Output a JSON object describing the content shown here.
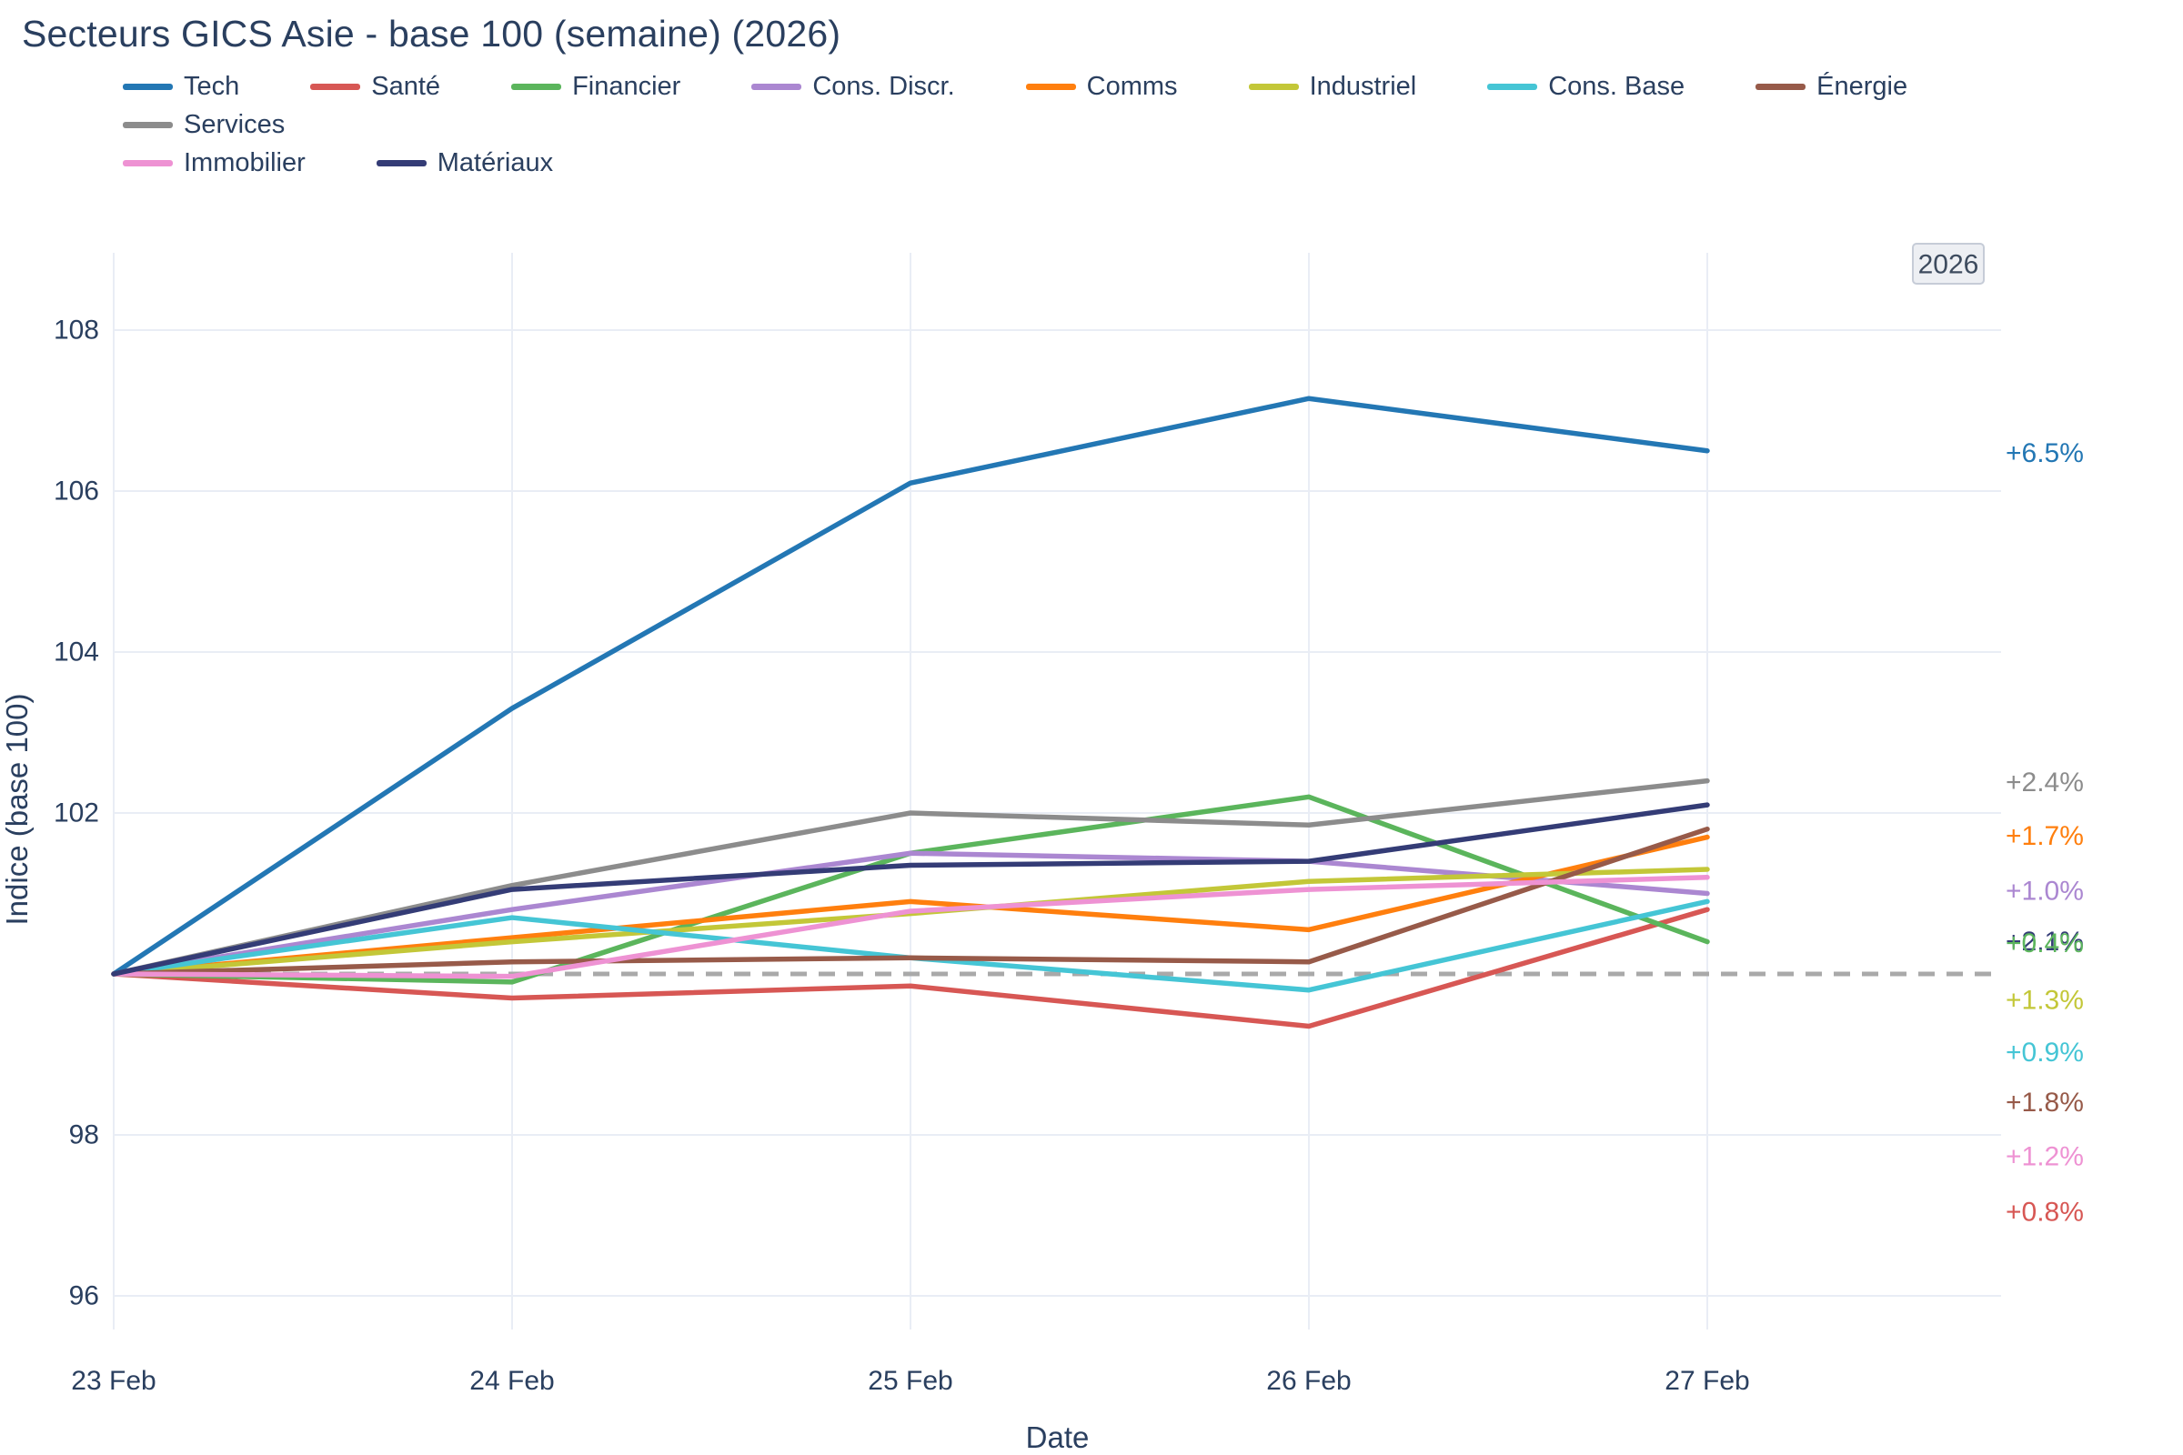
{
  "title": "Secteurs GICS Asie - base 100 (semaine) (2026)",
  "badge": "2026",
  "x_axis": {
    "title": "Date",
    "ticks": [
      "23 Feb",
      "24 Feb",
      "25 Feb",
      "26 Feb",
      "27 Feb"
    ]
  },
  "y_axis": {
    "title": "Indice (base 100)",
    "ticks": [
      96,
      98,
      102,
      104,
      106,
      108
    ]
  },
  "baseline_value": 100,
  "chart_data": {
    "type": "line",
    "title": "Secteurs GICS Asie - base 100 (semaine) (2026)",
    "xlabel": "Date",
    "ylabel": "Indice (base 100)",
    "x": [
      "23 Feb",
      "24 Feb",
      "25 Feb",
      "26 Feb",
      "27 Feb"
    ],
    "ylim": [
      95.5,
      109
    ],
    "grid": true,
    "legend_position": "top",
    "baseline": 100,
    "series": [
      {
        "name": "Tech",
        "color": "#2377b4",
        "values": [
          100,
          103.3,
          106.1,
          107.15,
          106.5
        ],
        "end_label": "+6.5%",
        "end_label_value": 106.47
      },
      {
        "name": "Santé",
        "color": "#d75754",
        "values": [
          100,
          99.7,
          99.85,
          99.35,
          100.8
        ],
        "end_label": "+0.8%",
        "end_label_value": 97.04
      },
      {
        "name": "Financier",
        "color": "#5bb55c",
        "values": [
          100,
          99.9,
          101.5,
          102.2,
          100.4
        ],
        "end_label": "+0.4%",
        "end_label_value": 100.38
      },
      {
        "name": "Cons. Discr.",
        "color": "#ab87d1",
        "values": [
          100,
          100.8,
          101.5,
          101.4,
          101.0
        ],
        "end_label": "+1.0%",
        "end_label_value": 101.03
      },
      {
        "name": "Comms",
        "color": "#ff7f0e",
        "values": [
          100,
          100.45,
          100.9,
          100.55,
          101.7
        ],
        "end_label": "+1.7%",
        "end_label_value": 101.71
      },
      {
        "name": "Industriel",
        "color": "#c3c738",
        "values": [
          100,
          100.4,
          100.75,
          101.15,
          101.3
        ],
        "end_label": "+1.3%",
        "end_label_value": 99.67
      },
      {
        "name": "Cons. Base",
        "color": "#45c5d5",
        "values": [
          100,
          100.7,
          100.2,
          99.8,
          100.9
        ],
        "end_label": "+0.9%",
        "end_label_value": 99.02
      },
      {
        "name": "Énergie",
        "color": "#975a49",
        "values": [
          100,
          100.15,
          100.2,
          100.15,
          101.8
        ],
        "end_label": "+1.8%",
        "end_label_value": 98.4
      },
      {
        "name": "Services",
        "color": "#8c8c8c",
        "values": [
          100,
          101.1,
          102.0,
          101.85,
          102.4
        ],
        "end_label": "+2.4%",
        "end_label_value": 102.38
      },
      {
        "name": "Immobilier",
        "color": "#ee92d3",
        "values": [
          100,
          99.97,
          100.78,
          101.05,
          101.2
        ],
        "end_label": "+1.2%",
        "end_label_value": 97.73
      },
      {
        "name": "Matériaux",
        "color": "#343c76",
        "values": [
          100,
          101.05,
          101.35,
          101.4,
          102.1
        ],
        "end_label": "+2.1%",
        "end_label_value": 100.4
      }
    ]
  },
  "colors": {
    "grid": "#e9edf5",
    "baseline_dash": "#a9a9a9",
    "text": "#2a3f5f",
    "badge_bg": "#edeff3",
    "badge_border": "#c6ccd7"
  }
}
